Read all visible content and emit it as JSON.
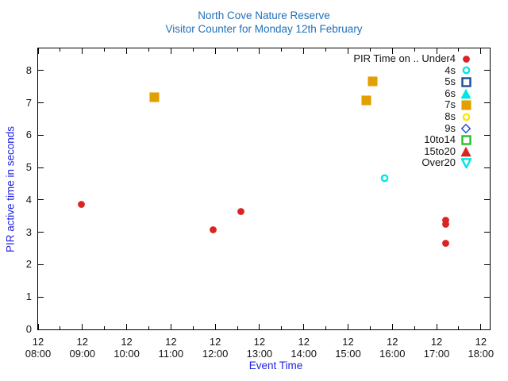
{
  "chart_data": {
    "type": "scatter",
    "title": "North Cove Nature Reserve",
    "subtitle": "Visitor Counter for Monday 12th February",
    "xlabel": "Event Time",
    "ylabel": "PIR active time in seconds",
    "x_axis": {
      "day_label": "12",
      "tick_hours": [
        8,
        9,
        10,
        11,
        12,
        13,
        14,
        15,
        16,
        17,
        18
      ],
      "tick_times": [
        "08:00",
        "09:00",
        "10:00",
        "11:00",
        "12:00",
        "13:00",
        "14:00",
        "15:00",
        "16:00",
        "17:00",
        "18:00"
      ],
      "minor_tick_hours": [
        8.5,
        9.5,
        10.5,
        11.5,
        12.5,
        13.5,
        14.5,
        15.5,
        16.5,
        17.5
      ],
      "xlim": [
        8,
        18.2
      ]
    },
    "y_axis": {
      "ticks": [
        0,
        1,
        2,
        3,
        4,
        5,
        6,
        7,
        8
      ],
      "ylim": [
        0,
        8.68
      ]
    },
    "legend": {
      "entries": [
        {
          "name": "Under4",
          "label": "PIR Time on .. Under4",
          "marker": "circle",
          "fill": true,
          "color": "#dc2323"
        },
        {
          "name": "4s",
          "label": "4s",
          "marker": "circle",
          "fill": false,
          "color": "#00e6e6"
        },
        {
          "name": "5s",
          "label": "5s",
          "marker": "square",
          "fill": false,
          "color": "#1d4f9c"
        },
        {
          "name": "6s",
          "label": "6s",
          "marker": "triangle-up",
          "fill": true,
          "color": "#00e6e6"
        },
        {
          "name": "7s",
          "label": "7s",
          "marker": "square",
          "fill": true,
          "color": "#e2a000"
        },
        {
          "name": "8s",
          "label": "8s",
          "marker": "circle",
          "fill": false,
          "color": "#ffe500"
        },
        {
          "name": "9s",
          "label": "9s",
          "marker": "diamond",
          "fill": false,
          "color": "#2244cc"
        },
        {
          "name": "10to14",
          "label": "10to14",
          "marker": "square",
          "fill": false,
          "color": "#2bc02b"
        },
        {
          "name": "15to20",
          "label": "15to20",
          "marker": "triangle-up",
          "fill": true,
          "color": "#dc2323"
        },
        {
          "name": "Over20",
          "label": "Over20",
          "marker": "triangle-down",
          "fill": false,
          "color": "#00e6e6"
        }
      ]
    },
    "series": [
      {
        "name": "Under4",
        "points": [
          {
            "time": "08:59",
            "hour": 8.98,
            "seconds": 3.85
          },
          {
            "time": "11:57",
            "hour": 11.95,
            "seconds": 3.07
          },
          {
            "time": "12:35",
            "hour": 12.58,
            "seconds": 3.63
          },
          {
            "time": "17:13",
            "hour": 17.21,
            "seconds": 3.38
          },
          {
            "time": "17:13",
            "hour": 17.21,
            "seconds": 3.25
          },
          {
            "time": "17:13",
            "hour": 17.21,
            "seconds": 2.66
          }
        ]
      },
      {
        "name": "4s",
        "points": [
          {
            "time": "15:49",
            "hour": 15.82,
            "seconds": 4.66
          }
        ]
      },
      {
        "name": "7s",
        "points": [
          {
            "time": "10:38",
            "hour": 10.63,
            "seconds": 7.17
          },
          {
            "time": "15:25",
            "hour": 15.41,
            "seconds": 7.07
          },
          {
            "time": "15:33",
            "hour": 15.55,
            "seconds": 7.66
          }
        ]
      }
    ]
  }
}
